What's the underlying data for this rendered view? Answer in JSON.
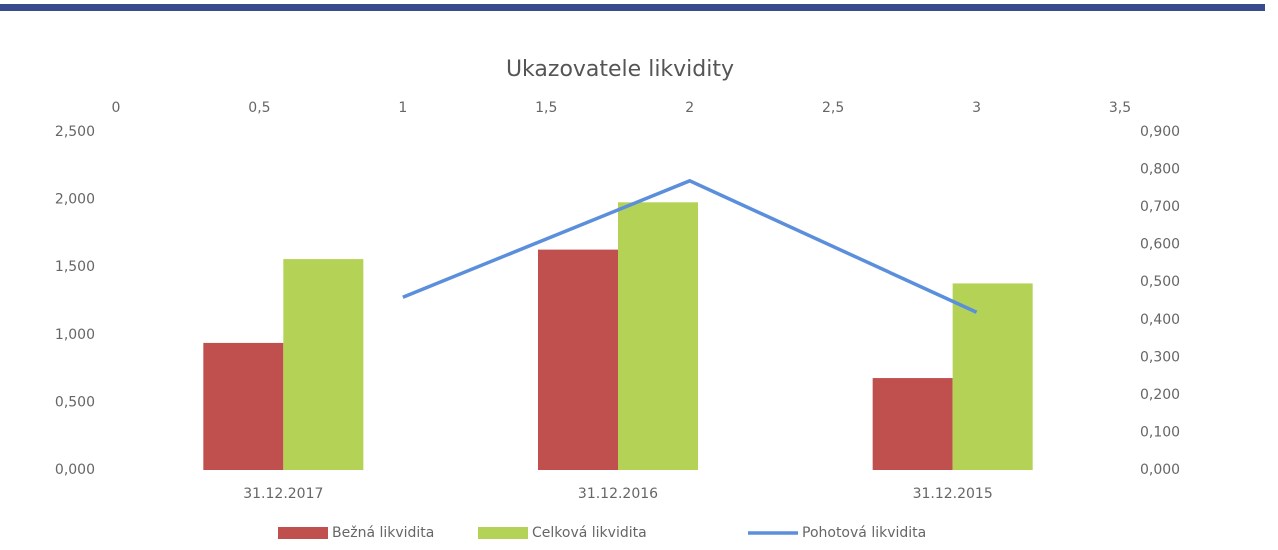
{
  "chart_data": {
    "type": "bar",
    "title": "Ukazovatele likvidity",
    "categories": [
      "31.12.2017",
      "31.12.2016",
      "31.12.2015"
    ],
    "series": [
      {
        "name": "Bežná likvidita",
        "color": "#c0504d",
        "values": [
          0.94,
          1.63,
          0.68
        ]
      },
      {
        "name": "Celková likvidita",
        "color": "#b3d256",
        "values": [
          1.56,
          1.98,
          1.38
        ]
      },
      {
        "name": "Pohotová likvidita",
        "color": "#5b8fdc",
        "type": "line",
        "axis": "y2",
        "xaxis": "x2",
        "x": [
          1,
          2,
          3
        ],
        "values": [
          0.46,
          0.77,
          0.42
        ]
      }
    ],
    "ylim": [
      0,
      2.5
    ],
    "yticks": [
      {
        "value": 0,
        "label": "0,000"
      },
      {
        "value": 0.5,
        "label": "0,500"
      },
      {
        "value": 1,
        "label": "1,000"
      },
      {
        "value": 1.5,
        "label": "1,500"
      },
      {
        "value": 2,
        "label": "2,000"
      },
      {
        "value": 2.5,
        "label": "2,500"
      }
    ],
    "y2lim": [
      0,
      0.9
    ],
    "y2ticks": [
      {
        "value": 0,
        "label": "0,000"
      },
      {
        "value": 0.1,
        "label": "0,100"
      },
      {
        "value": 0.2,
        "label": "0,200"
      },
      {
        "value": 0.3,
        "label": "0,300"
      },
      {
        "value": 0.4,
        "label": "0,400"
      },
      {
        "value": 0.5,
        "label": "0,500"
      },
      {
        "value": 0.6,
        "label": "0,600"
      },
      {
        "value": 0.7,
        "label": "0,700"
      },
      {
        "value": 0.8,
        "label": "0,800"
      },
      {
        "value": 0.9,
        "label": "0,900"
      }
    ],
    "x2lim": [
      0,
      3.5
    ],
    "x2ticks": [
      0,
      {
        "value": 0.5,
        "label": "0,5"
      },
      1,
      {
        "value": 1.5,
        "label": "1,5"
      },
      2,
      {
        "value": 2.5,
        "label": "2,5"
      },
      3,
      {
        "value": 3.5,
        "label": "3,5"
      }
    ],
    "legend": "bottom"
  }
}
